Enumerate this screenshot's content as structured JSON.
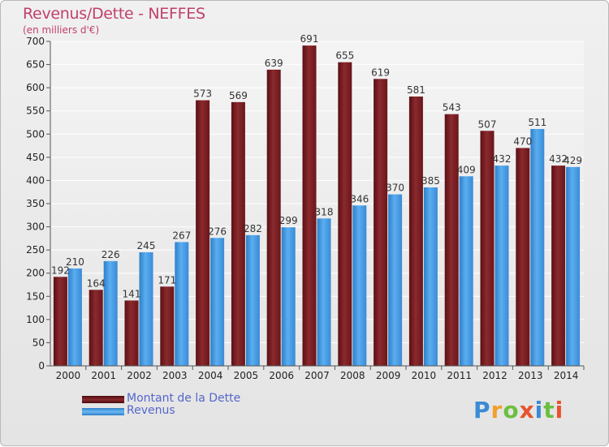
{
  "title": "Revenus/Dette - NEFFES",
  "subtitle": "(en milliers d'€)",
  "logo_letters": [
    "P",
    "r",
    "o",
    "x",
    "i",
    "t",
    "i"
  ],
  "logo_colors": [
    "#3a8ad6",
    "#f0a02c",
    "#6cbf3e",
    "#e8522c",
    "#3a8ad6",
    "#6cbf3e",
    "#e8522c"
  ],
  "colors": {
    "dette": "#7a1e22",
    "revenus": "#3d8fd8"
  },
  "chart_data": {
    "type": "bar",
    "categories": [
      "2000",
      "2001",
      "2002",
      "2003",
      "2004",
      "2005",
      "2006",
      "2007",
      "2008",
      "2009",
      "2010",
      "2011",
      "2012",
      "2013",
      "2014"
    ],
    "series": [
      {
        "name": "Montant de la Dette",
        "values": [
          192,
          164,
          141,
          171,
          573,
          569,
          639,
          691,
          655,
          619,
          581,
          543,
          507,
          470,
          432
        ]
      },
      {
        "name": "Revenus",
        "values": [
          210,
          226,
          245,
          267,
          276,
          282,
          299,
          318,
          346,
          370,
          385,
          409,
          432,
          511,
          429
        ]
      }
    ],
    "ylim": [
      0,
      700
    ],
    "yticks": [
      0,
      50,
      100,
      150,
      200,
      250,
      300,
      350,
      400,
      450,
      500,
      550,
      600,
      650,
      700
    ],
    "grid": true,
    "legend_position": "bottom-left"
  }
}
